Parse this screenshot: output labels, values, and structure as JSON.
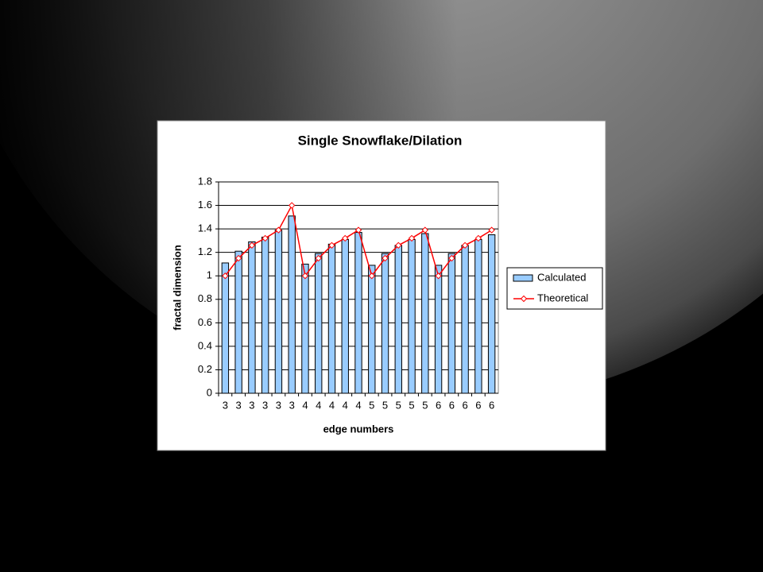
{
  "chart_data": {
    "type": "bar_line",
    "title": "Single Snowflake/Dilation",
    "x_label": "edge numbers",
    "y_label": "fractal dimension",
    "categories": [
      "3",
      "3",
      "3",
      "3",
      "3",
      "3",
      "4",
      "4",
      "4",
      "4",
      "4",
      "5",
      "5",
      "5",
      "5",
      "5",
      "6",
      "6",
      "6",
      "6",
      "6"
    ],
    "series": [
      {
        "name": "Calculated",
        "type": "bar",
        "color": "#99ccff",
        "values": [
          1.11,
          1.21,
          1.29,
          1.33,
          1.39,
          1.51,
          1.1,
          1.19,
          1.27,
          1.31,
          1.37,
          1.09,
          1.19,
          1.26,
          1.31,
          1.36,
          1.09,
          1.19,
          1.26,
          1.31,
          1.35
        ]
      },
      {
        "name": "Theoretical",
        "type": "line",
        "color": "#ff0000",
        "values": [
          1.0,
          1.15,
          1.26,
          1.32,
          1.39,
          1.6,
          1.0,
          1.15,
          1.26,
          1.32,
          1.39,
          1.0,
          1.15,
          1.26,
          1.32,
          1.39,
          1.0,
          1.15,
          1.26,
          1.32,
          1.39
        ]
      }
    ],
    "ylim": [
      0,
      1.8
    ],
    "yticks": [
      0,
      0.2,
      0.4,
      0.6,
      0.8,
      1,
      1.2,
      1.4,
      1.6,
      1.8
    ],
    "grid": true,
    "legend": "right"
  }
}
